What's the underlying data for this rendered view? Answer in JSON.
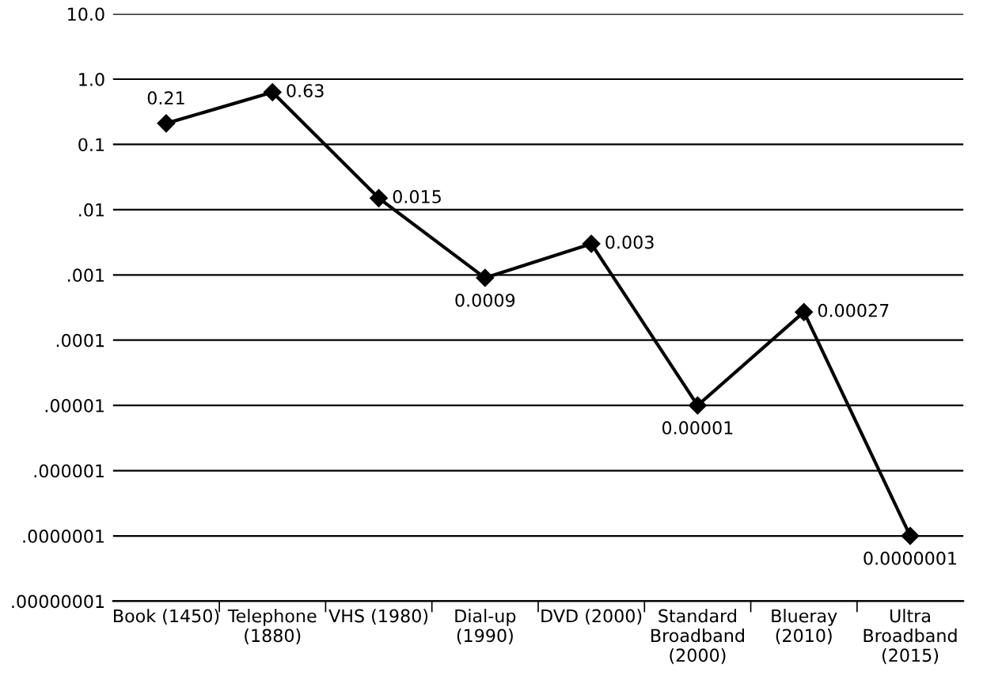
{
  "chart_data": {
    "type": "line",
    "log": "y",
    "grid": "y",
    "marker": "diamond",
    "line_style": "solid",
    "categories": [
      "Book (1450)",
      "Telephone\n(1880)",
      "VHS (1980)",
      "Dial-up\n(1990)",
      "DVD (2000)",
      "Standard\nBroadband\n(2000)",
      "Blueray\n(2010)",
      "Ultra\nBroadband\n(2015)"
    ],
    "series": [
      {
        "color": "#000000",
        "values": [
          0.21,
          0.63,
          0.015,
          0.0009,
          0.003,
          1e-05,
          0.00027,
          1e-07
        ],
        "value_labels": [
          "0.21",
          "0.63",
          "0.015",
          "0.0009",
          "0.003",
          "0.00001",
          "0.00027",
          "0.0000001"
        ]
      }
    ],
    "ylim": [
      1e-08,
      10
    ],
    "yticks": [
      {
        "value": 10,
        "label": "10.0"
      },
      {
        "value": 1,
        "label": "1.0"
      },
      {
        "value": 0.1,
        "label": "0.1"
      },
      {
        "value": 0.01,
        "label": ".01"
      },
      {
        "value": 0.001,
        "label": ".001"
      },
      {
        "value": 0.0001,
        "label": ".0001"
      },
      {
        "value": 1e-05,
        "label": ".00001"
      },
      {
        "value": 1e-06,
        "label": ".000001"
      },
      {
        "value": 1e-07,
        "label": ".0000001"
      },
      {
        "value": 1e-08,
        "label": ".00000001"
      }
    ]
  }
}
